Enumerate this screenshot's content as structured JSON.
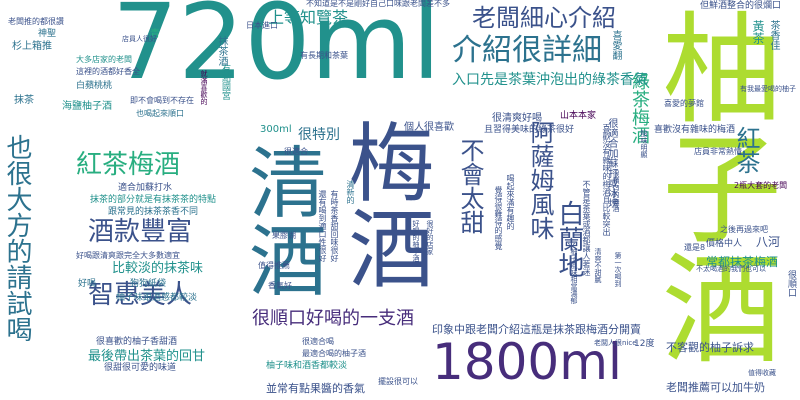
{
  "palette": {
    "purple": "#440154",
    "indigo": "#472d7b",
    "blue": "#3b528b",
    "steel": "#2c728e",
    "teal": "#21918c",
    "green": "#28ae80",
    "lime": "#5ec962",
    "yellowgreen": "#addc30"
  },
  "words": [
    {
      "id": "w01",
      "text": "720ml"
    },
    {
      "id": "w02",
      "text": "柚子酒"
    },
    {
      "id": "w03",
      "text": "梅酒"
    },
    {
      "id": "w04",
      "text": "清酒"
    },
    {
      "id": "w05",
      "text": "1800ml"
    },
    {
      "id": "w06",
      "text": "介紹很詳細"
    },
    {
      "id": "w07",
      "text": "老闆細心介紹"
    },
    {
      "id": "w08",
      "text": "也很大方的請試喝"
    },
    {
      "id": "w09",
      "text": "紅茶梅酒"
    },
    {
      "id": "w10",
      "text": "酒款豐富"
    },
    {
      "id": "w11",
      "text": "智惠美人"
    },
    {
      "id": "w12",
      "text": "很順口好喝的一支酒"
    },
    {
      "id": "w13",
      "text": "不會太甜"
    },
    {
      "id": "w14",
      "text": "阿薩姆風味"
    },
    {
      "id": "w15",
      "text": "白蘭地"
    },
    {
      "id": "w16",
      "text": "紅茶"
    },
    {
      "id": "w17",
      "text": "綠茶梅酒"
    },
    {
      "id": "w18",
      "text": "上等知覽茶"
    },
    {
      "id": "w19",
      "text": "比較淡的抹茶味"
    },
    {
      "id": "w20",
      "text": "最後帶出茶葉的回甘"
    },
    {
      "id": "w21",
      "text": "入口先是茶葉沖泡出的綠茶香氣"
    },
    {
      "id": "w22",
      "text": "很特別"
    },
    {
      "id": "w23",
      "text": "印象中跟老闆介紹這瓶是抹茶跟梅酒分開賣"
    },
    {
      "id": "w24",
      "text": "老闆推薦可以加牛奶"
    },
    {
      "id": "w25",
      "text": "並常有點果醬的香氣"
    },
    {
      "id": "w26",
      "text": "不客觀的柚子訴求"
    },
    {
      "id": "w27",
      "text": "不知道是不是剛好自己口味跟老闆差不多"
    },
    {
      "id": "w28",
      "text": "老闆推的都很讚"
    },
    {
      "id": "w29",
      "text": "杉上箱推"
    },
    {
      "id": "w30",
      "text": "神聖"
    },
    {
      "id": "w31",
      "text": "抹茶"
    },
    {
      "id": "w32",
      "text": "海鹽柚子酒"
    },
    {
      "id": "w33",
      "text": "白蘋桃桃"
    },
    {
      "id": "w34",
      "text": "大多店家的老闆"
    },
    {
      "id": "w35",
      "text": "這裡的酒都好香全"
    },
    {
      "id": "w36",
      "text": "即不會喝到不存在"
    },
    {
      "id": "w37",
      "text": "也喝起來順口"
    },
    {
      "id": "w38",
      "text": "300ml"
    },
    {
      "id": "w39",
      "text": "個人很喜歡"
    },
    {
      "id": "w40",
      "text": "很清爽好喝"
    },
    {
      "id": "w41",
      "text": "山本本家"
    },
    {
      "id": "w42",
      "text": "且習得美味的綠茶很好"
    },
    {
      "id": "w43",
      "text": "很適合加蘇打或冰塊"
    },
    {
      "id": "w44",
      "text": "有長期和茶葉"
    },
    {
      "id": "w45",
      "text": "有點國宮"
    },
    {
      "id": "w46",
      "text": "抹茶酒"
    },
    {
      "id": "w47",
      "text": "喜愛翻"
    },
    {
      "id": "w48",
      "text": "青"
    },
    {
      "id": "w49",
      "text": "店員人很好"
    },
    {
      "id": "w50",
      "text": "適合加蘇打水"
    },
    {
      "id": "w51",
      "text": "抹茶的部分就是有抹茶茶的特點"
    },
    {
      "id": "w52",
      "text": "跟常見的抹茶茶香不同"
    },
    {
      "id": "w53",
      "text": "好喝跟清爽跟完全大多數適宜"
    },
    {
      "id": "w54",
      "text": "狗狗紙袋"
    },
    {
      "id": "w55",
      "text": "柚子味跟酒感都較淡"
    },
    {
      "id": "w56",
      "text": "很喜歡的柚子香甜酒"
    },
    {
      "id": "w57",
      "text": "很甜很可愛的味道"
    },
    {
      "id": "w58",
      "text": "柚子味和酒香都較淡"
    },
    {
      "id": "w59",
      "text": "好喝"
    },
    {
      "id": "w60",
      "text": "價格中人"
    },
    {
      "id": "w61",
      "text": "八河"
    },
    {
      "id": "w62",
      "text": "常都抹茶梅酒"
    },
    {
      "id": "w63",
      "text": "12度"
    },
    {
      "id": "w64",
      "text": "老闆人很nice"
    },
    {
      "id": "w65",
      "text": "擺設很可以"
    },
    {
      "id": "w66",
      "text": "很適合喝"
    },
    {
      "id": "w67",
      "text": "最適合喝的柚子酒"
    },
    {
      "id": "w68",
      "text": "喜愛的夢館"
    },
    {
      "id": "w69",
      "text": "店員非常熱情"
    },
    {
      "id": "w70",
      "text": "2瓶大套的老闆"
    },
    {
      "id": "w71",
      "text": "之後再過來吧"
    },
    {
      "id": "w72",
      "text": "還是8"
    },
    {
      "id": "w73",
      "text": "很順口"
    },
    {
      "id": "w74",
      "text": "喜歡沒有雜味的梅酒"
    },
    {
      "id": "w75",
      "text": "值得收藏"
    },
    {
      "id": "w76",
      "text": "但鮮酒整合的很爛口"
    },
    {
      "id": "w77",
      "text": "有我最愛喝的柚子"
    },
    {
      "id": "w78",
      "text": "黃茶"
    },
    {
      "id": "w79",
      "text": "不太喝酒的我們也可以"
    },
    {
      "id": "w80",
      "text": "茶香佳"
    },
    {
      "id": "w81",
      "text": "就滿喜歡的"
    },
    {
      "id": "w82",
      "text": "喜歡沒有雜味的梅酒且比較突出"
    },
    {
      "id": "w83",
      "text": "不管是茶葉或酒都讓人著迷"
    },
    {
      "id": "w84",
      "text": "喝起來滿有趣的"
    },
    {
      "id": "w85",
      "text": "覺得很難得的感覺"
    },
    {
      "id": "w86",
      "text": "還有喝到適口性很好"
    },
    {
      "id": "w87",
      "text": "有時茶香甜回味很好"
    },
    {
      "id": "w88",
      "text": "果膠湖"
    },
    {
      "id": "w89",
      "text": "清新的"
    },
    {
      "id": "w90",
      "text": "好喝的柚子酒"
    },
    {
      "id": "w91",
      "text": "很適合"
    },
    {
      "id": "w92",
      "text": "很好的店家"
    },
    {
      "id": "w93",
      "text": "很順口的梅酒"
    },
    {
      "id": "w94",
      "text": "柚子風味相當濃郁"
    },
    {
      "id": "w95",
      "text": "清爽不甜膩"
    },
    {
      "id": "w96",
      "text": "第一次喝到"
    },
    {
      "id": "w97",
      "text": "酸味明顯"
    },
    {
      "id": "w98",
      "text": "值得推薦"
    },
    {
      "id": "w99",
      "text": "香氣好"
    },
    {
      "id": "w100",
      "text": "日本進口"
    }
  ]
}
